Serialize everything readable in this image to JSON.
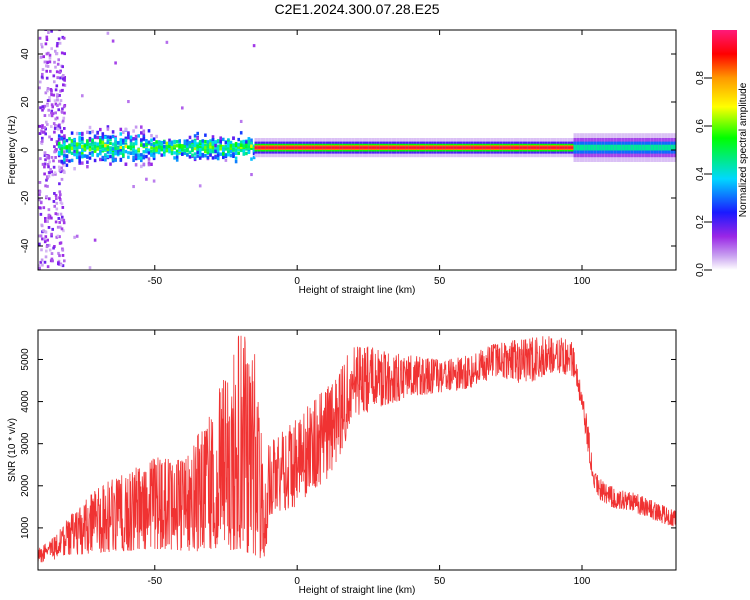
{
  "title": "C2E1.2024.300.07.28.E25",
  "chart_data": [
    {
      "type": "heatmap",
      "xlabel": "Height of straight line (km)",
      "ylabel": "Frequency (Hz)",
      "xlim": [
        -91,
        133
      ],
      "ylim": [
        -50,
        50
      ],
      "xticks": [
        -50,
        0,
        50,
        100
      ],
      "yticks": [
        -40,
        -20,
        0,
        20,
        40
      ],
      "ridge_frequency_hz": 1,
      "colorbar": {
        "label": "Normalized spectral amplitude",
        "range": [
          0,
          1
        ],
        "ticks": [
          "0.0",
          "0.2",
          "0.4",
          "0.6",
          "0.8"
        ],
        "colors": [
          "#ffffff",
          "#9a26e6",
          "#1a1aff",
          "#00d8ff",
          "#00ff00",
          "#ffff00",
          "#ff9900",
          "#ff0000",
          "#ff1a7a"
        ]
      },
      "segments": [
        {
          "from_km": -91,
          "to_km": -84,
          "description_value": "broadband noise"
        },
        {
          "from_km": -84,
          "to_km": -15,
          "description_value": "scattered"
        },
        {
          "from_km": -15,
          "to_km": 97,
          "description_value": "strong"
        },
        {
          "from_km": 97,
          "to_km": 133,
          "description_value": "moderate"
        }
      ]
    },
    {
      "type": "line",
      "xlabel": "Height of straight line (km)",
      "ylabel": "SNR (10 * v/v)",
      "xlim": [
        -91,
        133
      ],
      "ylim": [
        0,
        5700
      ],
      "xticks": [
        -50,
        0,
        50,
        100
      ],
      "yticks": [
        1000,
        2000,
        3000,
        4000,
        5000
      ],
      "series_color": "#f03232",
      "envelope": {
        "x": [
          -91,
          -85,
          -80,
          -70,
          -60,
          -50,
          -40,
          -30,
          -20,
          -15,
          -11,
          -10,
          -5,
          0,
          5,
          10,
          15,
          20,
          30,
          40,
          50,
          60,
          70,
          80,
          90,
          97,
          100,
          102,
          104,
          106,
          110,
          120,
          133
        ],
        "y_low": [
          150,
          250,
          350,
          400,
          450,
          500,
          450,
          400,
          500,
          300,
          250,
          1300,
          1400,
          1500,
          1900,
          2100,
          2700,
          3600,
          3900,
          4100,
          4200,
          4300,
          4600,
          4400,
          4700,
          4600,
          3700,
          2800,
          2000,
          1700,
          1500,
          1300,
          1000
        ],
        "y_high": [
          500,
          800,
          1300,
          2000,
          2300,
          2700,
          2600,
          3800,
          5700,
          5200,
          2000,
          3000,
          3300,
          3600,
          4000,
          4300,
          4700,
          5500,
          5200,
          5100,
          5000,
          5100,
          5400,
          5500,
          5600,
          5400,
          4200,
          3600,
          2400,
          2200,
          2000,
          1800,
          1400
        ]
      }
    }
  ]
}
